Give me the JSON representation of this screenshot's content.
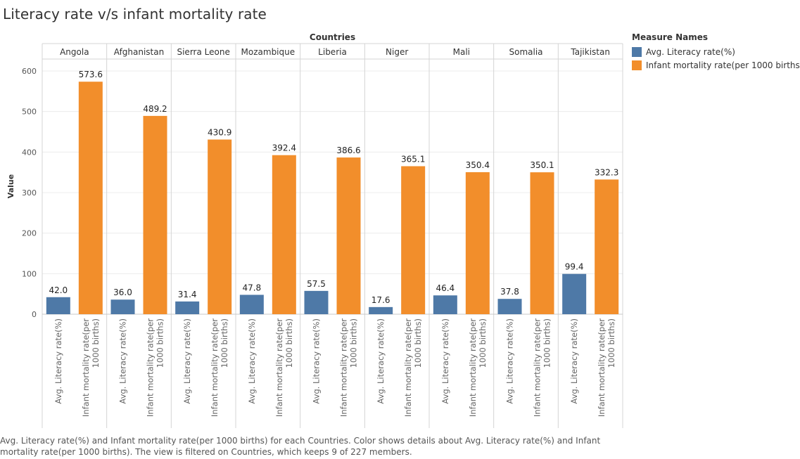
{
  "title": "Literacy rate v/s infant mortality rate",
  "column_header": "Countries",
  "legend": {
    "title": "Measure Names",
    "items": [
      {
        "label": "Avg. Literacy rate(%)",
        "color": "#4e79a7"
      },
      {
        "label": "Infant mortality rate(per 1000 births)",
        "color": "#f28e2b"
      }
    ]
  },
  "caption": "Avg. Literacy rate(%) and Infant mortality rate(per 1000 births) for each Countries.  Color shows details about Avg. Literacy rate(%) and Infant mortality rate(per 1000 births). The view is filtered on Countries, which keeps 9 of 227 members.",
  "chart_data": {
    "type": "bar",
    "categories": [
      "Angola",
      "Afghanistan",
      "Sierra Leone",
      "Mozambique",
      "Liberia",
      "Niger",
      "Mali",
      "Somalia",
      "Tajikistan"
    ],
    "series": [
      {
        "name": "Avg. Literacy rate(%)",
        "color": "#4e79a7",
        "values": [
          42.0,
          36.0,
          31.4,
          47.8,
          57.5,
          17.6,
          46.4,
          37.8,
          99.4
        ],
        "labels": [
          "42.0",
          "36.0",
          "31.4",
          "47.8",
          "57.5",
          "17.6",
          "46.4",
          "37.8",
          "99.4"
        ]
      },
      {
        "name": "Infant mortality rate(per 1000 births)",
        "color": "#f28e2b",
        "values": [
          573.6,
          489.2,
          430.9,
          392.4,
          386.6,
          365.1,
          350.4,
          350.1,
          332.3
        ],
        "labels": [
          "573.6",
          "489.2",
          "430.9",
          "392.4",
          "386.6",
          "365.1",
          "350.4",
          "350.1",
          "332.3"
        ]
      }
    ],
    "axis_label_lines": [
      [
        "Avg. Literacy rate(%)"
      ],
      [
        "Infant mortality rate(per",
        "1000 births)"
      ]
    ],
    "ylabel": "Value",
    "ylim": [
      0,
      620
    ],
    "yticks": [
      0,
      100,
      200,
      300,
      400,
      500,
      600
    ],
    "grid": true
  }
}
